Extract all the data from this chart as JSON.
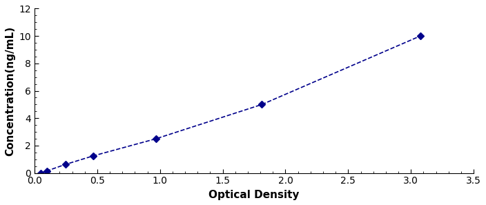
{
  "x_data": [
    0.047,
    0.1,
    0.246,
    0.468,
    0.968,
    1.812,
    3.075
  ],
  "y_data": [
    0.0,
    0.156,
    0.625,
    1.25,
    2.5,
    5.0,
    10.0
  ],
  "line_color": "#00008B",
  "marker_color": "#00008B",
  "marker_style": "D",
  "marker_size": 5,
  "line_width": 1.2,
  "xlabel": "Optical Density",
  "ylabel": "Concentration(ng/mL)",
  "xlim": [
    0,
    3.5
  ],
  "ylim": [
    0,
    12
  ],
  "xticks": [
    0,
    0.5,
    1.0,
    1.5,
    2.0,
    2.5,
    3.0,
    3.5
  ],
  "yticks": [
    0,
    2,
    4,
    6,
    8,
    10,
    12
  ],
  "xlabel_fontsize": 11,
  "ylabel_fontsize": 11,
  "tick_fontsize": 10,
  "background_color": "#ffffff",
  "border_color": "#000000"
}
